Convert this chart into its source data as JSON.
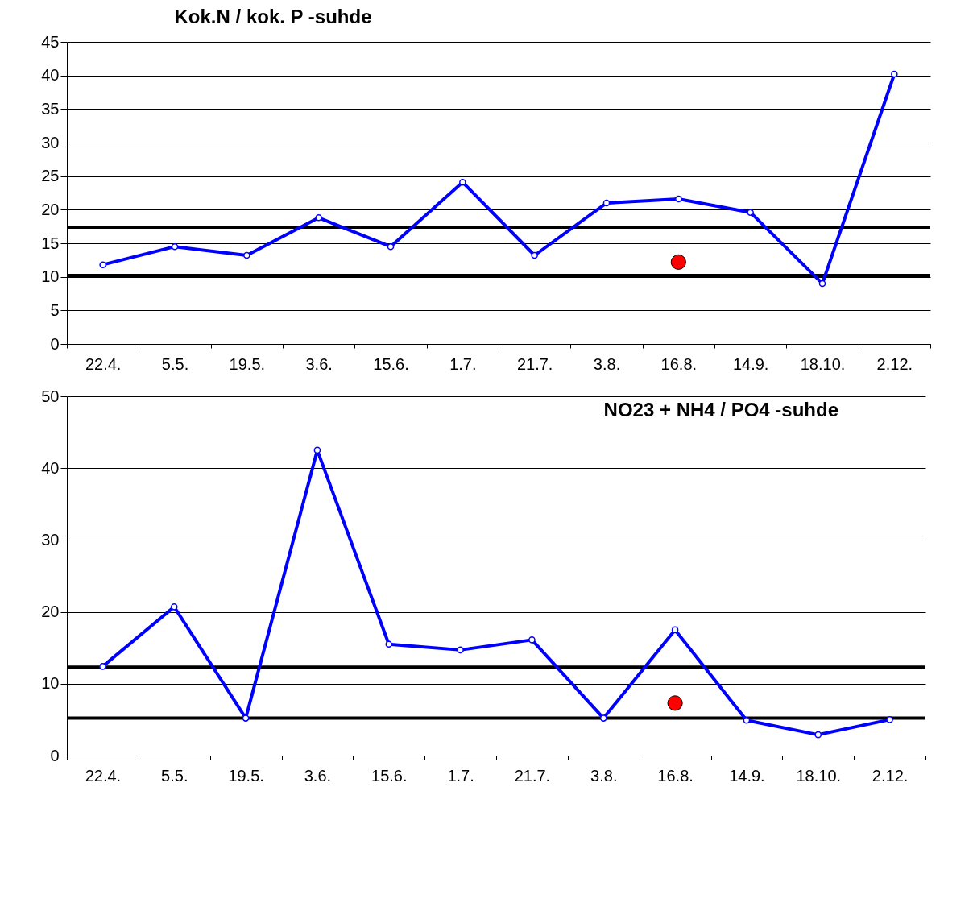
{
  "chart_data": [
    {
      "type": "line",
      "title": "Kok.N / kok. P -suhde",
      "categories": [
        "22.4.",
        "5.5.",
        "19.5.",
        "3.6.",
        "15.6.",
        "1.7.",
        "21.7.",
        "3.8.",
        "16.8.",
        "14.9.",
        "18.10.",
        "2.12."
      ],
      "series": [
        {
          "color": "#0000ff",
          "values": [
            11.8,
            14.5,
            13.2,
            18.8,
            14.5,
            24.1,
            13.2,
            21.0,
            21.6,
            19.6,
            9.0,
            40.2
          ]
        },
        {
          "type": "scatter",
          "color": "#ff0000",
          "x": [
            "16.8."
          ],
          "values": [
            12.2
          ]
        }
      ],
      "ylim": [
        0,
        45
      ],
      "yticks": [
        0,
        5,
        10,
        15,
        20,
        25,
        30,
        35,
        40,
        45
      ],
      "grid": "y",
      "marker": "circle",
      "line_style": "solid",
      "ref_lines": [
        {
          "axis": "y",
          "value": 17.4,
          "color": "#000000"
        },
        {
          "axis": "y",
          "value": 10.2,
          "color": "#000000"
        }
      ]
    },
    {
      "type": "line",
      "title": "NO23 + NH4 / PO4 -suhde",
      "categories": [
        "22.4.",
        "5.5.",
        "19.5.",
        "3.6.",
        "15.6.",
        "1.7.",
        "21.7.",
        "3.8.",
        "16.8.",
        "14.9.",
        "18.10.",
        "2.12."
      ],
      "series": [
        {
          "color": "#0000ff",
          "values": [
            12.4,
            20.7,
            5.2,
            42.5,
            15.5,
            14.7,
            16.1,
            5.2,
            17.5,
            4.9,
            2.9,
            5.0
          ]
        },
        {
          "type": "scatter",
          "color": "#ff0000",
          "x": [
            "16.8."
          ],
          "values": [
            7.3
          ]
        }
      ],
      "ylim": [
        0,
        50
      ],
      "yticks": [
        0,
        10,
        20,
        30,
        40,
        50
      ],
      "grid": "y",
      "marker": "circle",
      "line_style": "solid",
      "ref_lines": [
        {
          "axis": "y",
          "value": 12.3,
          "color": "#000000"
        },
        {
          "axis": "y",
          "value": 5.2,
          "color": "#000000"
        }
      ]
    }
  ]
}
